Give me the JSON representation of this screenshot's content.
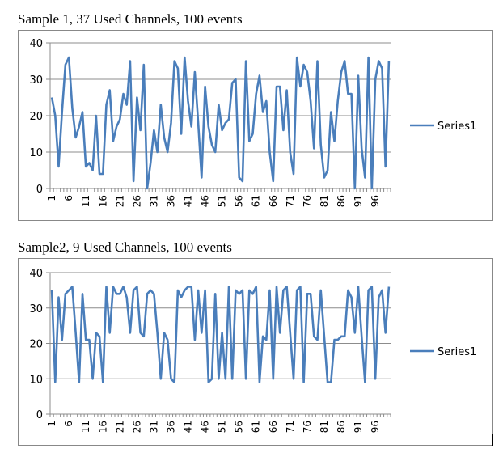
{
  "chart_data": [
    {
      "type": "line",
      "title": "Sample 1, 37 Used Channels, 100 events",
      "xlabel": "",
      "ylabel": "",
      "ylim": [
        0,
        40
      ],
      "yticks": [
        0,
        10,
        20,
        30,
        40
      ],
      "xtick_labels": [
        "1",
        "6",
        "11",
        "16",
        "21",
        "26",
        "31",
        "36",
        "41",
        "46",
        "51",
        "56",
        "61",
        "66",
        "71",
        "76",
        "81",
        "86",
        "91",
        "96"
      ],
      "grid": true,
      "legend": "right",
      "color": "#4a7ebb",
      "series": [
        {
          "name": "Series1",
          "values": [
            25,
            20,
            6,
            21,
            34,
            36,
            22,
            14,
            17,
            21,
            6,
            7,
            5,
            20,
            4,
            4,
            23,
            27,
            13,
            17,
            19,
            26,
            23,
            35,
            2,
            25,
            16,
            34,
            0,
            7,
            16,
            10,
            23,
            14,
            10,
            18,
            35,
            33,
            15,
            36,
            24,
            17,
            32,
            18,
            3,
            28,
            17,
            12,
            10,
            23,
            16,
            18,
            19,
            29,
            30,
            3,
            2,
            35,
            13,
            15,
            26,
            31,
            21,
            24,
            10,
            2,
            28,
            28,
            16,
            27,
            10,
            4,
            36,
            28,
            34,
            32,
            24,
            11,
            35,
            12,
            3,
            5,
            21,
            13,
            24,
            32,
            35,
            26,
            26,
            0,
            31,
            11,
            3,
            36,
            0,
            30,
            35,
            33,
            6,
            35
          ]
        }
      ]
    },
    {
      "type": "line",
      "title": "Sample2, 9 Used Channels, 100 events",
      "xlabel": "",
      "ylabel": "",
      "ylim": [
        0,
        40
      ],
      "yticks": [
        0,
        10,
        20,
        30,
        40
      ],
      "xtick_labels": [
        "1",
        "6",
        "11",
        "16",
        "21",
        "26",
        "31",
        "36",
        "41",
        "46",
        "51",
        "56",
        "61",
        "66",
        "71",
        "76",
        "81",
        "86",
        "91",
        "96"
      ],
      "grid": true,
      "legend": "right",
      "color": "#4a7ebb",
      "series": [
        {
          "name": "Series1",
          "values": [
            35,
            9,
            33,
            21,
            34,
            35,
            36,
            23,
            9,
            34,
            21,
            21,
            10,
            23,
            22,
            9,
            36,
            23,
            36,
            34,
            34,
            36,
            33,
            23,
            35,
            36,
            23,
            22,
            34,
            35,
            34,
            23,
            10,
            23,
            21,
            10,
            9,
            35,
            33,
            35,
            36,
            36,
            21,
            35,
            23,
            35,
            9,
            10,
            34,
            10,
            23,
            10,
            36,
            10,
            35,
            34,
            35,
            10,
            35,
            34,
            36,
            9,
            22,
            21,
            35,
            10,
            36,
            23,
            35,
            36,
            23,
            10,
            35,
            36,
            9,
            34,
            34,
            22,
            21,
            35,
            22,
            9,
            9,
            21,
            21,
            22,
            22,
            35,
            33,
            23,
            36,
            22,
            9,
            35,
            36,
            10,
            33,
            35,
            23,
            36
          ]
        }
      ]
    }
  ]
}
